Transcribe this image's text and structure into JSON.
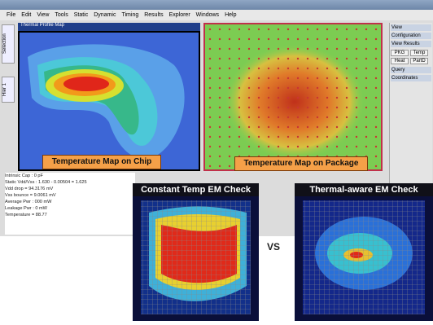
{
  "window": {
    "menu": [
      "File",
      "Edit",
      "View",
      "Tools",
      "Static",
      "Dynamic",
      "Timing",
      "Results",
      "Explorer",
      "Windows",
      "Help"
    ]
  },
  "tabs": [
    "Selection",
    "Hier 1"
  ],
  "thermal_panel": {
    "title": "Thermal Profile Map"
  },
  "labels": {
    "chip": "Temperature Map on Chip",
    "package": "Temperature Map on Package"
  },
  "right_panel": {
    "sections": [
      "View",
      "Configuration",
      "View Results",
      "Query",
      "Coordinates"
    ],
    "buttons": [
      "PKG",
      "Temp",
      "Heat",
      "PartD"
    ]
  },
  "log": [
    "Intrinsic Cap : 0 pF",
    "Static Vdd/Vss : 1.630 - 0.00504 = 1.625",
    "Vdd drop = 94.3176 mV",
    "Vss bounce = 9.0061 mV",
    "Average Pwr : 000 mW",
    "Leakage Pwr : 0 mW",
    "Temperature = 88.77"
  ],
  "em": {
    "left": "Constant Temp EM Check",
    "vs": "VS",
    "right": "Thermal-aware EM Check"
  }
}
